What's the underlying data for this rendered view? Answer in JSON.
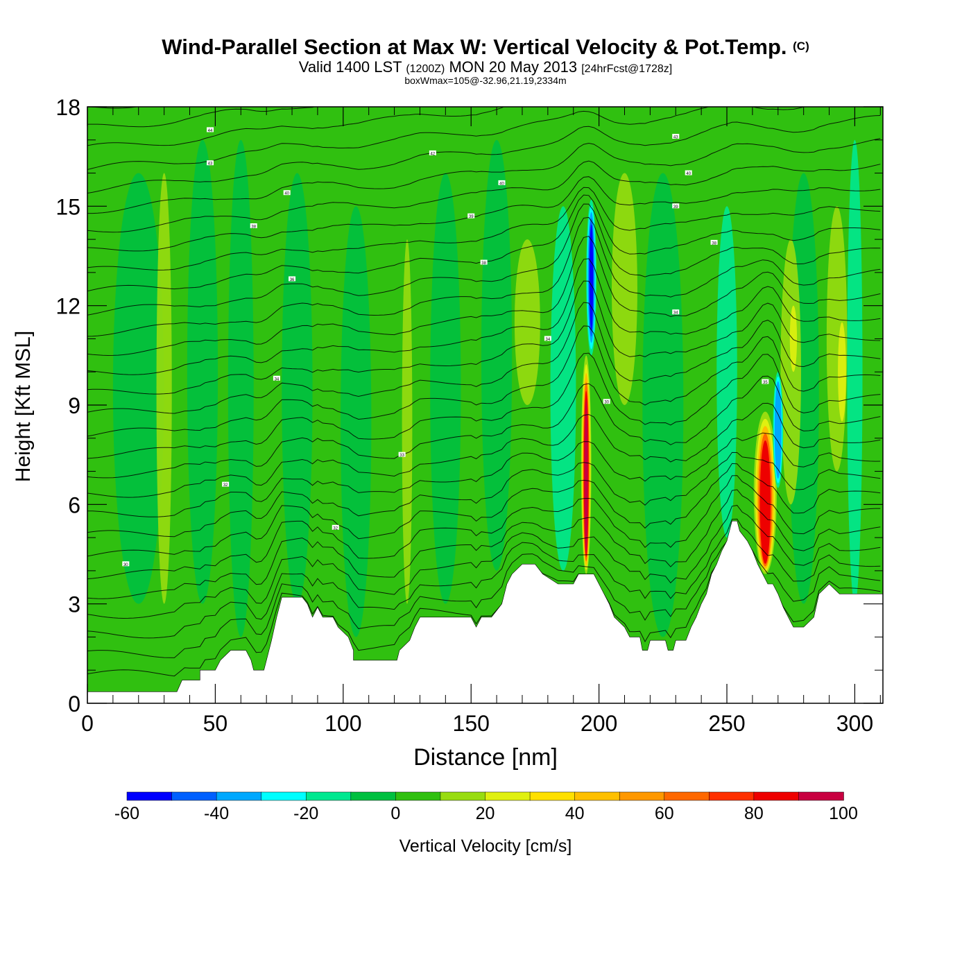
{
  "chart_data": {
    "type": "heatmap",
    "title": "Wind-Parallel Section at Max W: Vertical Velocity & Pot.Temp.",
    "title_tag": "(C)",
    "subtitle_main": "Valid 1400 LST",
    "subtitle_utc": "(1200Z)",
    "subtitle_date": "MON 20 May 2013",
    "subtitle_fcst": "[24hrFcst@1728z]",
    "subtitle2": "boxWmax=105@-32.96,21.19,2334m",
    "xlabel": "Distance [nm]",
    "ylabel": "Height [Kft MSL]",
    "xlim": [
      0,
      311
    ],
    "ylim": [
      0,
      18
    ],
    "xticks": [
      "0",
      "50",
      "100",
      "150",
      "200",
      "250",
      "300"
    ],
    "yticks": [
      "0",
      "3",
      "6",
      "9",
      "12",
      "15",
      "18"
    ],
    "colorbar": {
      "label": "Vertical Velocity [cm/s]",
      "levels": [
        -60,
        -50,
        -40,
        -30,
        -20,
        -10,
        0,
        10,
        20,
        30,
        40,
        50,
        60,
        70,
        80,
        90,
        100
      ],
      "tick_labels": [
        "-60",
        "-40",
        "-20",
        "0",
        "20",
        "40",
        "60",
        "80",
        "100"
      ],
      "colors": [
        "#0000ff",
        "#0060ff",
        "#00a8ff",
        "#00ffff",
        "#00e890",
        "#00c040",
        "#30c010",
        "#98dc10",
        "#e0f010",
        "#ffe000",
        "#ffc000",
        "#ff9800",
        "#ff6800",
        "#ff3000",
        "#ee0000",
        "#c80040"
      ]
    },
    "terrain_kft": [
      [
        0,
        0.35
      ],
      [
        35,
        0.35
      ],
      [
        37,
        0.7
      ],
      [
        44,
        0.7
      ],
      [
        44,
        1.0
      ],
      [
        50,
        1.0
      ],
      [
        52,
        1.3
      ],
      [
        56,
        1.6
      ],
      [
        62,
        1.6
      ],
      [
        64,
        1.3
      ],
      [
        65,
        1.0
      ],
      [
        69,
        1.0
      ],
      [
        70,
        1.3
      ],
      [
        72,
        1.9
      ],
      [
        74,
        2.6
      ],
      [
        75,
        2.9
      ],
      [
        76,
        3.2
      ],
      [
        84,
        3.2
      ],
      [
        86,
        3.0
      ],
      [
        88,
        2.6
      ],
      [
        90,
        2.9
      ],
      [
        92,
        2.6
      ],
      [
        96,
        2.6
      ],
      [
        98,
        2.3
      ],
      [
        102,
        2.0
      ],
      [
        104,
        1.6
      ],
      [
        104,
        1.3
      ],
      [
        121,
        1.3
      ],
      [
        122,
        1.6
      ],
      [
        126,
        1.9
      ],
      [
        128,
        2.3
      ],
      [
        130,
        2.6
      ],
      [
        138,
        2.6
      ],
      [
        150,
        2.6
      ],
      [
        152,
        2.3
      ],
      [
        154,
        2.6
      ],
      [
        158,
        2.6
      ],
      [
        162,
        3.0
      ],
      [
        164,
        3.6
      ],
      [
        166,
        3.9
      ],
      [
        170,
        4.2
      ],
      [
        175,
        4.2
      ],
      [
        178,
        3.9
      ],
      [
        184,
        3.6
      ],
      [
        190,
        3.6
      ],
      [
        192,
        3.9
      ],
      [
        198,
        3.9
      ],
      [
        200,
        3.6
      ],
      [
        204,
        3.0
      ],
      [
        206,
        2.6
      ],
      [
        210,
        2.3
      ],
      [
        212,
        2.0
      ],
      [
        216,
        2.0
      ],
      [
        217,
        1.6
      ],
      [
        219,
        1.6
      ],
      [
        220,
        1.9
      ],
      [
        226,
        1.9
      ],
      [
        227,
        1.6
      ],
      [
        229,
        1.6
      ],
      [
        230,
        1.9
      ],
      [
        234,
        1.9
      ],
      [
        236,
        2.3
      ],
      [
        238,
        2.6
      ],
      [
        240,
        3.0
      ],
      [
        242,
        3.3
      ],
      [
        244,
        3.9
      ],
      [
        246,
        4.2
      ],
      [
        248,
        4.6
      ],
      [
        250,
        4.9
      ],
      [
        252,
        5.5
      ],
      [
        254,
        5.5
      ],
      [
        255,
        5.2
      ],
      [
        258,
        4.9
      ],
      [
        260,
        4.6
      ],
      [
        262,
        4.2
      ],
      [
        264,
        3.9
      ],
      [
        266,
        3.6
      ],
      [
        268,
        3.6
      ],
      [
        270,
        3.3
      ],
      [
        272,
        2.9
      ],
      [
        274,
        2.6
      ],
      [
        276,
        2.3
      ],
      [
        280,
        2.3
      ],
      [
        284,
        2.6
      ],
      [
        286,
        3.3
      ],
      [
        290,
        3.6
      ],
      [
        294,
        3.3
      ],
      [
        311,
        3.3
      ]
    ],
    "updrafts": [
      {
        "x": 195,
        "z_bottom": 3.9,
        "z_top": 10.5,
        "peak_cms": 100,
        "width_nm": 4
      },
      {
        "x": 265,
        "z_bottom": 3.9,
        "z_top": 8.8,
        "peak_cms": 85,
        "width_nm": 9
      }
    ],
    "downdrafts": [
      {
        "x": 197,
        "z_bottom": 10.5,
        "z_top": 15.2,
        "min_cms": -60,
        "width_nm": 4
      },
      {
        "x": 270,
        "z_bottom": 6.5,
        "z_top": 10,
        "min_cms": -40,
        "width_nm": 4
      }
    ],
    "theta_contour_labels": [
      {
        "x": 48,
        "z": 17.3,
        "text": "44"
      },
      {
        "x": 48,
        "z": 16.3,
        "text": "43"
      },
      {
        "x": 135,
        "z": 16.6,
        "text": "42"
      },
      {
        "x": 230,
        "z": 17.1,
        "text": "43"
      },
      {
        "x": 235,
        "z": 16.0,
        "text": "40"
      },
      {
        "x": 78,
        "z": 15.4,
        "text": "40"
      },
      {
        "x": 162,
        "z": 15.7,
        "text": "40"
      },
      {
        "x": 230,
        "z": 15.0,
        "text": "39"
      },
      {
        "x": 65,
        "z": 14.4,
        "text": "38"
      },
      {
        "x": 150,
        "z": 14.7,
        "text": "39"
      },
      {
        "x": 245,
        "z": 13.9,
        "text": "38"
      },
      {
        "x": 155,
        "z": 13.3,
        "text": "38"
      },
      {
        "x": 80,
        "z": 12.8,
        "text": "36"
      },
      {
        "x": 230,
        "z": 11.8,
        "text": "34"
      },
      {
        "x": 180,
        "z": 11.0,
        "text": "34"
      },
      {
        "x": 74,
        "z": 9.8,
        "text": "34"
      },
      {
        "x": 265,
        "z": 9.7,
        "text": "35"
      },
      {
        "x": 203,
        "z": 9.1,
        "text": "30"
      },
      {
        "x": 123,
        "z": 7.5,
        "text": "33"
      },
      {
        "x": 54,
        "z": 6.6,
        "text": "32"
      },
      {
        "x": 97,
        "z": 5.3,
        "text": "32"
      },
      {
        "x": 15,
        "z": 4.2,
        "text": "30"
      }
    ]
  }
}
